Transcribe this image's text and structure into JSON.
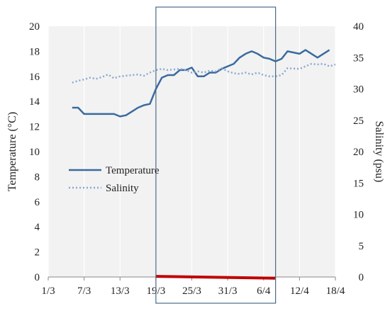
{
  "chart_data": {
    "type": "line",
    "title": "",
    "x_tick_labels": [
      "1/3",
      "7/3",
      "13/3",
      "19/3",
      "25/3",
      "31/3",
      "6/4",
      "12/4",
      "18/4"
    ],
    "x_axis_day_span": [
      "1/3",
      "18/4"
    ],
    "left_axis": {
      "label": "Temperature (°C)",
      "ylim": [
        0,
        20
      ],
      "ticks": [
        0,
        2,
        4,
        6,
        8,
        10,
        12,
        14,
        16,
        18,
        20
      ]
    },
    "right_axis": {
      "label": "Salinity (psu)",
      "ylim": [
        0,
        40
      ],
      "ticks": [
        0,
        5,
        10,
        15,
        20,
        25,
        30,
        35,
        40
      ]
    },
    "grid": "vertical gridlines on x ticks",
    "background": "#f2f2f2",
    "legend": {
      "placement": "middle-left"
    },
    "series": [
      {
        "name": "Temperature",
        "axis": "left",
        "color": "#3a6a9e",
        "style": "solid",
        "points": [
          [
            "5/3",
            13.5
          ],
          [
            "6/3",
            13.5
          ],
          [
            "7/3",
            13.0
          ],
          [
            "8/3",
            13.0
          ],
          [
            "9/3",
            13.0
          ],
          [
            "10/3",
            13.0
          ],
          [
            "11/3",
            13.0
          ],
          [
            "12/3",
            13.0
          ],
          [
            "13/3",
            12.8
          ],
          [
            "14/3",
            12.9
          ],
          [
            "15/3",
            13.2
          ],
          [
            "16/3",
            13.5
          ],
          [
            "17/3",
            13.7
          ],
          [
            "18/3",
            13.8
          ],
          [
            "19/3",
            15.0
          ],
          [
            "20/3",
            15.9
          ],
          [
            "21/3",
            16.1
          ],
          [
            "22/3",
            16.1
          ],
          [
            "23/3",
            16.5
          ],
          [
            "24/3",
            16.5
          ],
          [
            "25/3",
            16.7
          ],
          [
            "26/3",
            16.0
          ],
          [
            "27/3",
            16.0
          ],
          [
            "28/3",
            16.3
          ],
          [
            "29/3",
            16.3
          ],
          [
            "30/3",
            16.6
          ],
          [
            "31/3",
            16.8
          ],
          [
            "1/4",
            17.0
          ],
          [
            "2/4",
            17.5
          ],
          [
            "3/4",
            17.8
          ],
          [
            "4/4",
            18.0
          ],
          [
            "5/4",
            17.8
          ],
          [
            "6/4",
            17.5
          ],
          [
            "7/4",
            17.4
          ],
          [
            "8/4",
            17.2
          ],
          [
            "9/4",
            17.4
          ],
          [
            "10/4",
            18.0
          ],
          [
            "12/4",
            17.8
          ],
          [
            "13/4",
            18.1
          ],
          [
            "15/4",
            17.5
          ],
          [
            "17/4",
            18.1
          ]
        ]
      },
      {
        "name": "Salinity",
        "axis": "right",
        "color": "#8aa8cf",
        "style": "dotted",
        "points": [
          [
            "5/3",
            31.0
          ],
          [
            "6/3",
            31.3
          ],
          [
            "7/3",
            31.5
          ],
          [
            "8/3",
            31.8
          ],
          [
            "9/3",
            31.6
          ],
          [
            "10/3",
            31.9
          ],
          [
            "11/3",
            32.3
          ],
          [
            "12/3",
            31.7
          ],
          [
            "13/3",
            32.0
          ],
          [
            "14/3",
            32.1
          ],
          [
            "15/3",
            32.2
          ],
          [
            "16/3",
            32.3
          ],
          [
            "17/3",
            32.1
          ],
          [
            "18/3",
            32.6
          ],
          [
            "19/3",
            33.0
          ],
          [
            "20/3",
            33.2
          ],
          [
            "21/3",
            33.0
          ],
          [
            "22/3",
            33.1
          ],
          [
            "23/3",
            33.2
          ],
          [
            "24/3",
            33.0
          ],
          [
            "25/3",
            32.6
          ],
          [
            "26/3",
            32.8
          ],
          [
            "27/3",
            32.6
          ],
          [
            "28/3",
            32.9
          ],
          [
            "29/3",
            32.8
          ],
          [
            "30/3",
            33.3
          ],
          [
            "31/3",
            32.8
          ],
          [
            "1/4",
            32.5
          ],
          [
            "2/4",
            32.4
          ],
          [
            "3/4",
            32.6
          ],
          [
            "4/4",
            32.3
          ],
          [
            "5/4",
            32.6
          ],
          [
            "6/4",
            32.2
          ],
          [
            "7/4",
            32.0
          ],
          [
            "8/4",
            32.0
          ],
          [
            "9/4",
            32.2
          ],
          [
            "10/4",
            33.3
          ],
          [
            "12/4",
            33.2
          ],
          [
            "13/4",
            33.6
          ],
          [
            "14/4",
            34.0
          ],
          [
            "15/4",
            33.9
          ],
          [
            "16/4",
            34.0
          ],
          [
            "17/4",
            33.6
          ],
          [
            "18/4",
            33.9
          ]
        ]
      }
    ],
    "annotations": {
      "highlight_box": {
        "x_range": [
          "19/3",
          "8/4"
        ],
        "color": "#4a6a8a"
      },
      "red_bar": {
        "x_range": [
          "19/3",
          "8/4"
        ],
        "y_start": 0.05,
        "y_end": -0.1,
        "color": "#c00000"
      }
    }
  }
}
